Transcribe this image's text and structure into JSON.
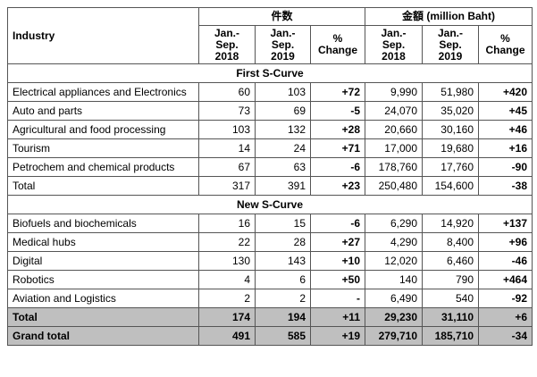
{
  "header": {
    "industry": "Industry",
    "groups": [
      "件数",
      "金額 (million Baht)"
    ],
    "columns": [
      [
        "Jan.-",
        "Sep.",
        "2018"
      ],
      [
        "Jan.-",
        "Sep.",
        "2019"
      ],
      [
        "%",
        "Change"
      ],
      [
        "Jan.-",
        "Sep.",
        "2018"
      ],
      [
        "Jan.-",
        "Sep.",
        "2019"
      ],
      [
        "%",
        "Change"
      ]
    ]
  },
  "sections": [
    {
      "title": "First S-Curve",
      "rows": [
        [
          "Electrical appliances and Electronics",
          "60",
          "103",
          "+72",
          "9,990",
          "51,980",
          "+420"
        ],
        [
          "Auto and parts",
          "73",
          "69",
          "-5",
          "24,070",
          "35,020",
          "+45"
        ],
        [
          "Agricultural and food processing",
          "103",
          "132",
          "+28",
          "20,660",
          "30,160",
          "+46"
        ],
        [
          "Tourism",
          "14",
          "24",
          "+71",
          "17,000",
          "19,680",
          "+16"
        ],
        [
          "Petrochem and chemical products",
          "67",
          "63",
          "-6",
          "178,760",
          "17,760",
          "-90"
        ],
        [
          "Total",
          "317",
          "391",
          "+23",
          "250,480",
          "154,600",
          "-38"
        ]
      ]
    },
    {
      "title": "New S-Curve",
      "rows": [
        [
          "Biofuels and biochemicals",
          "16",
          "15",
          "-6",
          "6,290",
          "14,920",
          "+137"
        ],
        [
          "Medical hubs",
          "22",
          "28",
          "+27",
          "4,290",
          "8,400",
          "+96"
        ],
        [
          "Digital",
          "130",
          "143",
          "+10",
          "12,020",
          "6,460",
          "-46"
        ],
        [
          "Robotics",
          "4",
          "6",
          "+50",
          "140",
          "790",
          "+464"
        ],
        [
          "Aviation and Logistics",
          "2",
          "2",
          "-",
          "6,490",
          "540",
          "-92"
        ]
      ]
    }
  ],
  "summary": [
    [
      "Total",
      "174",
      "194",
      "+11",
      "29,230",
      "31,110",
      "+6"
    ],
    [
      "Grand total",
      "491",
      "585",
      "+19",
      "279,710",
      "185,710",
      "-34"
    ]
  ]
}
